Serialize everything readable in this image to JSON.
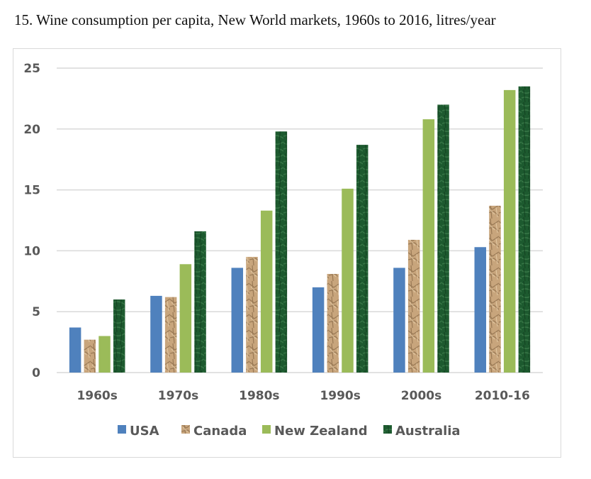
{
  "chart_data": {
    "type": "bar",
    "title": "15.  Wine consumption per capita, New World markets, 1960s to 2016, litres/year",
    "categories": [
      "1960s",
      "1970s",
      "1980s",
      "1990s",
      "2000s",
      "2010-16"
    ],
    "series": [
      {
        "name": "USA",
        "color": "#4f81bd",
        "values": [
          3.7,
          6.3,
          8.6,
          7.0,
          8.6,
          10.3
        ]
      },
      {
        "name": "Canada",
        "color": "#c4a27a",
        "values": [
          2.7,
          6.2,
          9.5,
          8.1,
          10.9,
          13.7
        ]
      },
      {
        "name": "New Zealand",
        "color": "#9bbb59",
        "values": [
          3.0,
          8.9,
          13.3,
          15.1,
          20.8,
          23.2
        ]
      },
      {
        "name": "Australia",
        "color": "#1e5a30",
        "values": [
          6.0,
          11.6,
          19.8,
          18.7,
          22.0,
          23.5
        ]
      }
    ],
    "yticks": [
      "0",
      "5",
      "10",
      "15",
      "20",
      "25"
    ],
    "ylim": [
      0,
      25
    ],
    "grid": true,
    "legend": "bottom"
  }
}
